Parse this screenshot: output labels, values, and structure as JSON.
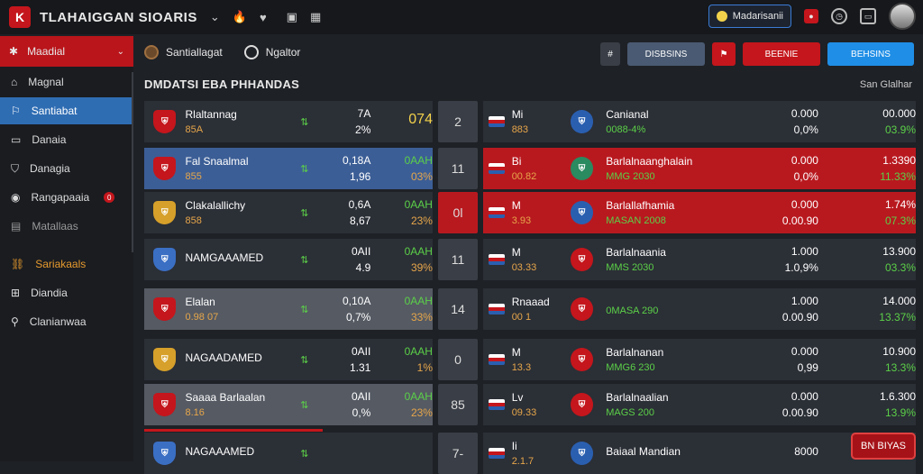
{
  "header": {
    "logo_letter": "K",
    "brand": "TLAHAIGGAN SIOARIS",
    "icons": [
      "dropdown-icon",
      "fire-icon",
      "heart-icon",
      "bookmark-icon",
      "grid-icon"
    ],
    "icon_glyphs": [
      "⌄",
      "🔥",
      "♥",
      "▣",
      "▦"
    ],
    "user_label": "Madarisanii",
    "right_icons": [
      "notification-icon",
      "clock-icon",
      "wallet-icon"
    ]
  },
  "sidebar": {
    "head": "Maadial",
    "items": [
      {
        "label": "Magnal",
        "icon": "⌂",
        "state": "normal"
      },
      {
        "label": "Santiabat",
        "icon": "⚐",
        "state": "active"
      },
      {
        "label": "Danaia",
        "icon": "▭",
        "state": "normal"
      },
      {
        "label": "Danagia",
        "icon": "⛉",
        "state": "normal"
      },
      {
        "label": "Rangapaaia",
        "icon": "◉",
        "state": "normal",
        "badge": "0"
      },
      {
        "label": "Matallaas",
        "icon": "▤",
        "state": "dim"
      },
      {
        "label": "Sariakaals",
        "icon": "⛓",
        "state": "orange"
      },
      {
        "label": "Diandia",
        "icon": "⊞",
        "state": "normal"
      },
      {
        "label": "Clanianwaa",
        "icon": "⚲",
        "state": "normal"
      }
    ]
  },
  "toolbar": {
    "tab1": "Santiallagat",
    "tab2": "Ngaltor",
    "hash": "#",
    "btn_live": "DISBSINS",
    "btn_red_icon": "⚑",
    "btn_result": "BEENIE",
    "btn_blue": "BEHSINS"
  },
  "section": {
    "title": "DMDATSI EBA PHHANDAS",
    "see_all": "San Glalhar"
  },
  "left_rows": [
    {
      "team": "Rlaltannag",
      "sub": "85A",
      "v1": "7A",
      "v2": "2%",
      "big": "074",
      "mid": "2",
      "bg": "#2b2f36",
      "shield": "#c4161c"
    },
    {
      "team": "Fal Snaalmal",
      "sub": "855",
      "v1": "0,18A",
      "v2": "1,96",
      "big": "0AAH",
      "big2": "03%",
      "mid": "11",
      "bg": "#3c5e96",
      "shield": "#c4161c"
    },
    {
      "team": "Clakalallichy",
      "sub": "858",
      "v1": "0,6A",
      "v2": "8,67",
      "big": "0AAH",
      "big2": "23%",
      "mid": "0l",
      "bg": "#2b2f36",
      "shield": "#d6a02a"
    },
    {
      "team": "NAMGAAAMED",
      "sub": "",
      "v1": "0AII",
      "v2": "4.9",
      "big": "0AAH",
      "big2": "39%",
      "mid": "11",
      "bg": "#2b2f36",
      "shield": "#3a6fc4"
    },
    {
      "team": "Elalan",
      "sub": "0.98 07",
      "v1": "0,10A",
      "v2": "0,7%",
      "big": "0AAH",
      "big2": "33%",
      "mid": "14",
      "bg": "#555a63",
      "shield": "#c4161c"
    },
    {
      "team": "NAGAADAMED",
      "sub": "",
      "v1": "0AII",
      "v2": "1.31",
      "big": "0AAH",
      "big2": "1%",
      "mid": "0",
      "bg": "#2b2f36",
      "shield": "#d6a02a"
    },
    {
      "team": "Saaaa Barlaalan",
      "sub": "8.16",
      "v1": "0AII",
      "v2": "0,%",
      "big": "0AAH",
      "big2": "23%",
      "mid": "85",
      "bg": "#555a63",
      "shield": "#c4161c"
    },
    {
      "team": "NAGAAAMED",
      "sub": "",
      "v1": "",
      "v2": "",
      "big": "",
      "big2": "",
      "mid": "7-",
      "bg": "#2b2f36",
      "shield": "#3a6fc4"
    }
  ],
  "right_rows": [
    {
      "code": "Mi",
      "score": "883",
      "team": "Canianal",
      "sub": "0088-4%",
      "o1": "0.000",
      "o2": "0,0%",
      "p1": "00.000",
      "p2": "03.9%",
      "bg": "#2b2f36",
      "crest": "#2a5fb0"
    },
    {
      "code": "Bi",
      "score": "00.82",
      "team": "Barlalnaanghalain",
      "sub": "MMG 2030",
      "o1": "0.000",
      "o2": "0,0%",
      "p1": "1.3390",
      "p2": "11.33%",
      "bg": "#b8191f",
      "crest": "#2a8a60"
    },
    {
      "code": "M",
      "score": "3.93",
      "team": "Barlallafhamia",
      "sub": "MASAN 2008",
      "o1": "0.000",
      "o2": "0.00.90",
      "p1": "1.74%",
      "p2": "07.3%",
      "bg": "#b8191f",
      "crest": "#2a5fb0"
    },
    {
      "code": "M",
      "score": "03.33",
      "team": "Barlalnaania",
      "sub": "MMS 2030",
      "o1": "1.000",
      "o2": "1.0,9%",
      "p1": "13.900",
      "p2": "03.3%",
      "bg": "#2b2f36",
      "crest": "#c4161c"
    },
    {
      "code": "Rnaaad",
      "score": "00 1",
      "team": "",
      "sub": "0MASA 290",
      "o1": "1.000",
      "o2": "0.00.90",
      "p1": "14.000",
      "p2": "13.37%",
      "bg": "#2b2f36",
      "crest": "#c4161c"
    },
    {
      "code": "M",
      "score": "13.3",
      "team": "Barlalnanan",
      "sub": "MMG6 230",
      "o1": "0.000",
      "o2": "0,99",
      "p1": "10.900",
      "p2": "13.3%",
      "bg": "#2b2f36",
      "crest": "#c4161c"
    },
    {
      "code": "Lv",
      "score": "09.33",
      "team": "Barlalnaalian",
      "sub": "MAGS 200",
      "o1": "0.000",
      "o2": "0.00.90",
      "p1": "1.6.300",
      "p2": "13.9%",
      "bg": "#2b2f36",
      "crest": "#c4161c"
    },
    {
      "code": "Ii",
      "score": "2.1.7",
      "team": "Baiaal Mandian",
      "sub": "",
      "o1": "8000",
      "o2": "",
      "p1": "",
      "p2": "",
      "bg": "#2b2f36",
      "crest": "#2a5fb0"
    }
  ],
  "float_button": "BN BIYAS"
}
